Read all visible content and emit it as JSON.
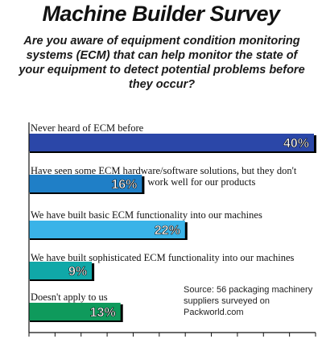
{
  "header": {
    "title": "Machine Builder Survey",
    "question": "Are you aware of equipment condition monitoring systems (ECM) that can help monitor the state of your equipment to detect potential problems before they occur?"
  },
  "source": "Source: 56 packaging machinery suppliers surveyed on Packworld.com",
  "chart_data": {
    "type": "bar",
    "orientation": "horizontal",
    "title": "Machine Builder Survey",
    "categories": [
      "Never heard of ECM before",
      "Have seen some ECM hardware/software solutions, but they don't work well for our products",
      "We have built basic ECM functionality into our machines",
      "We have built sophisticated ECM functionality into our machines",
      "Doesn't apply to us"
    ],
    "label_lines": [
      [
        "Never heard of ECM before"
      ],
      [
        "Have seen some ECM hardware/software solutions, but they don't",
        "work well for our products"
      ],
      [
        "We have built basic ECM functionality into our machines"
      ],
      [
        "We have built sophisticated ECM functionality into our machines"
      ],
      [
        "Doesn't apply to us"
      ]
    ],
    "values": [
      40,
      16,
      22,
      9,
      13
    ],
    "value_labels": [
      "40%",
      "16%",
      "22%",
      "9%",
      "13%"
    ],
    "colors": [
      "#2b47a8",
      "#1f7fc7",
      "#3ab3e8",
      "#10a8a8",
      "#0f9a5c"
    ],
    "xlim": [
      0,
      40
    ],
    "grid": false,
    "legend": "none"
  }
}
